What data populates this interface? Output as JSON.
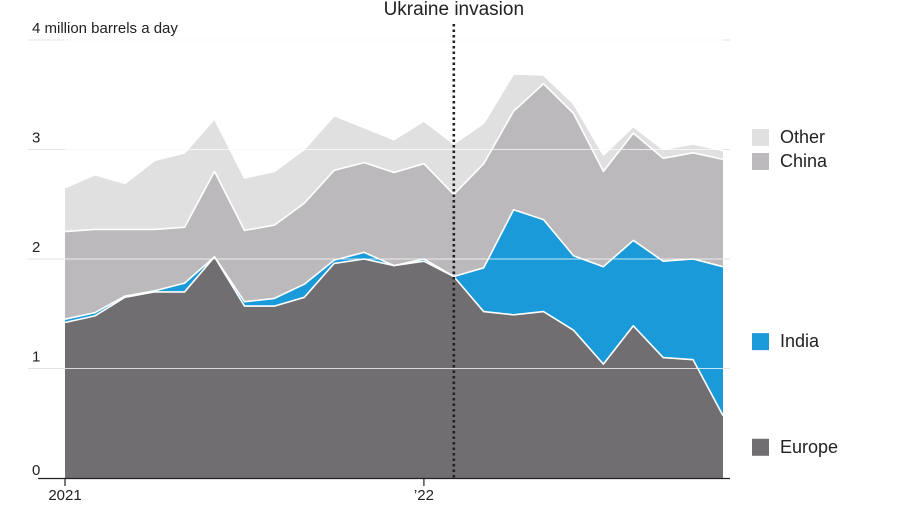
{
  "chart_data": {
    "type": "area",
    "stacked": true,
    "ylabel": "",
    "ylim": [
      0,
      4
    ],
    "y_ticks": [
      {
        "value": 0,
        "label": "0"
      },
      {
        "value": 1,
        "label": "1"
      },
      {
        "value": 2,
        "label": "2"
      },
      {
        "value": 3,
        "label": "3"
      },
      {
        "value": 4,
        "label": "4 million barrels a day"
      }
    ],
    "x_ticks": [
      {
        "index": 0,
        "label": "2021"
      },
      {
        "index": 12,
        "label": "’22"
      }
    ],
    "x": [
      0,
      1,
      2,
      3,
      4,
      5,
      6,
      7,
      8,
      9,
      10,
      11,
      12,
      13,
      14,
      15,
      16,
      17,
      18,
      19,
      20,
      21,
      22
    ],
    "series": [
      {
        "name": "Europe",
        "color": "#706e70",
        "values": [
          1.42,
          1.48,
          1.65,
          1.7,
          1.7,
          2.02,
          1.57,
          1.57,
          1.65,
          1.96,
          2.0,
          1.94,
          1.98,
          1.84,
          1.52,
          1.49,
          1.52,
          1.35,
          1.04,
          1.39,
          1.1,
          1.08,
          0.57
        ]
      },
      {
        "name": "India",
        "color": "#1a9ad9",
        "values": [
          0.03,
          0.03,
          0.01,
          0.01,
          0.08,
          0.0,
          0.04,
          0.07,
          0.12,
          0.03,
          0.06,
          0.0,
          0.02,
          0.0,
          0.4,
          0.96,
          0.84,
          0.68,
          0.89,
          0.78,
          0.88,
          0.92,
          1.36
        ]
      },
      {
        "name": "China",
        "color": "#bbb9bb",
        "values": [
          0.8,
          0.76,
          0.61,
          0.56,
          0.51,
          0.78,
          0.65,
          0.67,
          0.74,
          0.82,
          0.82,
          0.85,
          0.87,
          0.75,
          0.95,
          0.9,
          1.24,
          1.3,
          0.87,
          0.98,
          0.94,
          0.97,
          0.98
        ]
      },
      {
        "name": "Other",
        "color": "#e1e0e1",
        "values": [
          0.4,
          0.5,
          0.42,
          0.63,
          0.68,
          0.48,
          0.48,
          0.49,
          0.49,
          0.5,
          0.32,
          0.3,
          0.39,
          0.46,
          0.37,
          0.34,
          0.08,
          0.09,
          0.15,
          0.06,
          0.08,
          0.08,
          0.08
        ]
      }
    ],
    "annotation": {
      "label": "Ukraine invasion",
      "x": 13
    },
    "legend": [
      {
        "series": "Other",
        "label": "Other",
        "color": "#e1e0e1"
      },
      {
        "series": "China",
        "label": "China",
        "color": "#bbb9bb"
      },
      {
        "series": "India",
        "label": "India",
        "color": "#1a9ad9"
      },
      {
        "series": "Europe",
        "label": "Europe",
        "color": "#706e70"
      }
    ],
    "legend_placement": "right",
    "grid": true
  }
}
